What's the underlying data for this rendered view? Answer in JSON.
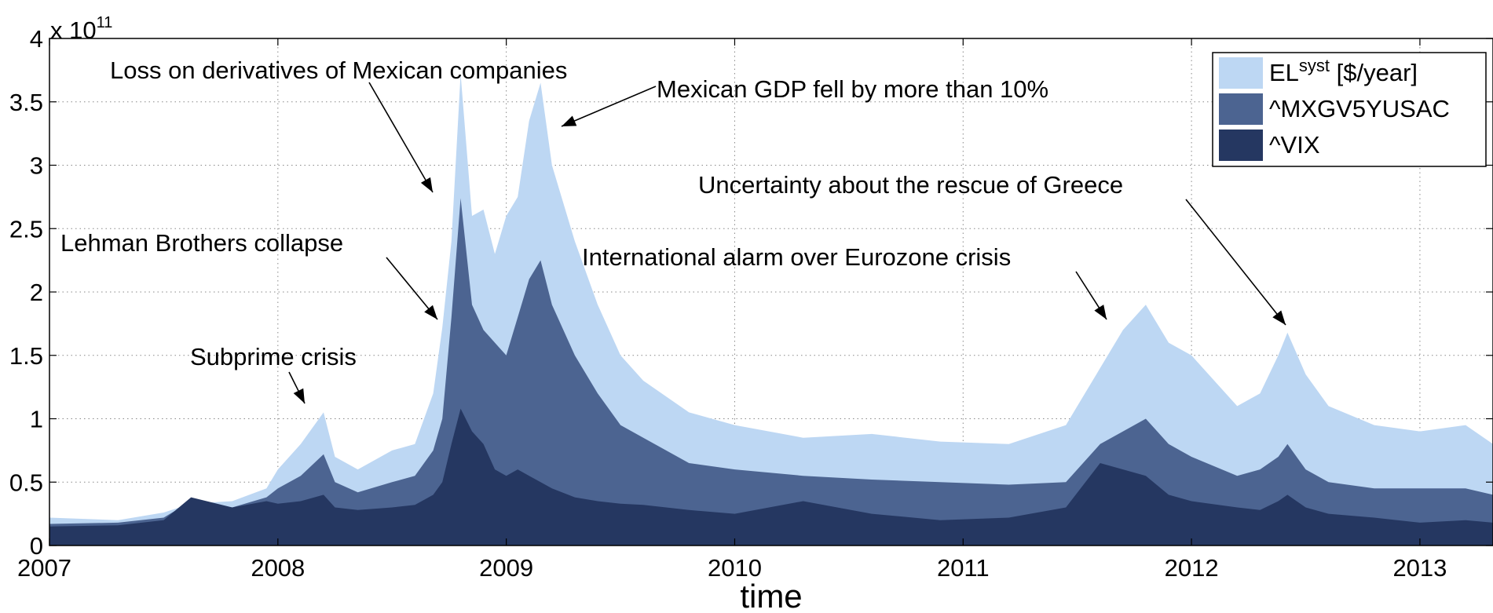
{
  "chart_data": {
    "type": "area",
    "xlabel": "time",
    "ylabel": "",
    "y_exponent_label": "x 10",
    "y_exponent_power": "11",
    "xlim": [
      2007.0,
      2013.32
    ],
    "ylim": [
      0,
      4
    ],
    "x_ticks": [
      2007,
      2008,
      2009,
      2010,
      2011,
      2012,
      2013
    ],
    "x_tick_labels": [
      "2007",
      "2008",
      "2009",
      "2010",
      "2011",
      "2012",
      "2013"
    ],
    "y_ticks": [
      0,
      0.5,
      1,
      1.5,
      2,
      2.5,
      3,
      3.5,
      4
    ],
    "y_tick_labels": [
      "0",
      "0.5",
      "1",
      "1.5",
      "2",
      "2.5",
      "3",
      "3.5",
      "4"
    ],
    "grid": true,
    "legend_position": "top-right",
    "legend": [
      {
        "name_main": "EL",
        "name_sup": "syst",
        "name_suffix": " [$/year]",
        "color": "#bdd7f3"
      },
      {
        "name_main": "^MXGV5YUSAC",
        "name_sup": "",
        "name_suffix": "",
        "color": "#4c6491"
      },
      {
        "name_main": "^VIX",
        "name_sup": "",
        "name_suffix": "",
        "color": "#253761"
      }
    ],
    "series": [
      {
        "name": "EL^syst [$/year]",
        "color": "#bdd7f3",
        "x": [
          2007.0,
          2007.3,
          2007.5,
          2007.62,
          2007.8,
          2007.95,
          2008.0,
          2008.1,
          2008.2,
          2008.25,
          2008.35,
          2008.5,
          2008.6,
          2008.68,
          2008.72,
          2008.76,
          2008.8,
          2008.85,
          2008.9,
          2008.95,
          2009.0,
          2009.05,
          2009.1,
          2009.15,
          2009.2,
          2009.3,
          2009.4,
          2009.5,
          2009.6,
          2009.8,
          2010.0,
          2010.3,
          2010.6,
          2010.9,
          2011.2,
          2011.45,
          2011.6,
          2011.7,
          2011.8,
          2011.9,
          2012.0,
          2012.2,
          2012.3,
          2012.38,
          2012.42,
          2012.5,
          2012.6,
          2012.8,
          2013.0,
          2013.2,
          2013.32
        ],
        "values": [
          0.22,
          0.2,
          0.26,
          0.33,
          0.35,
          0.45,
          0.6,
          0.8,
          1.05,
          0.7,
          0.6,
          0.75,
          0.8,
          1.2,
          1.72,
          2.4,
          3.72,
          2.6,
          2.65,
          2.3,
          2.6,
          2.75,
          3.35,
          3.65,
          3.0,
          2.4,
          1.9,
          1.5,
          1.3,
          1.05,
          0.95,
          0.85,
          0.88,
          0.82,
          0.8,
          0.95,
          1.4,
          1.7,
          1.9,
          1.6,
          1.5,
          1.1,
          1.2,
          1.5,
          1.68,
          1.35,
          1.1,
          0.95,
          0.9,
          0.95,
          0.8
        ]
      },
      {
        "name": "^MXGV5YUSAC",
        "color": "#4c6491",
        "x": [
          2007.0,
          2007.3,
          2007.5,
          2007.62,
          2007.8,
          2007.95,
          2008.0,
          2008.1,
          2008.2,
          2008.25,
          2008.35,
          2008.5,
          2008.6,
          2008.68,
          2008.72,
          2008.76,
          2008.8,
          2008.85,
          2008.9,
          2008.95,
          2009.0,
          2009.05,
          2009.1,
          2009.15,
          2009.2,
          2009.3,
          2009.4,
          2009.5,
          2009.6,
          2009.8,
          2010.0,
          2010.3,
          2010.6,
          2010.9,
          2011.2,
          2011.45,
          2011.6,
          2011.7,
          2011.8,
          2011.9,
          2012.0,
          2012.2,
          2012.3,
          2012.38,
          2012.42,
          2012.5,
          2012.6,
          2012.8,
          2013.0,
          2013.2,
          2013.32
        ],
        "values": [
          0.17,
          0.18,
          0.22,
          0.35,
          0.3,
          0.38,
          0.45,
          0.55,
          0.72,
          0.5,
          0.42,
          0.5,
          0.55,
          0.75,
          1.0,
          1.8,
          2.74,
          1.9,
          1.7,
          1.6,
          1.5,
          1.8,
          2.1,
          2.25,
          1.9,
          1.5,
          1.2,
          0.95,
          0.85,
          0.65,
          0.6,
          0.55,
          0.52,
          0.5,
          0.48,
          0.5,
          0.8,
          0.9,
          1.0,
          0.8,
          0.7,
          0.55,
          0.6,
          0.7,
          0.8,
          0.6,
          0.5,
          0.45,
          0.45,
          0.45,
          0.4
        ]
      },
      {
        "name": "^VIX",
        "color": "#253761",
        "x": [
          2007.0,
          2007.3,
          2007.5,
          2007.62,
          2007.8,
          2007.95,
          2008.0,
          2008.1,
          2008.2,
          2008.25,
          2008.35,
          2008.5,
          2008.6,
          2008.68,
          2008.72,
          2008.76,
          2008.8,
          2008.85,
          2008.9,
          2008.95,
          2009.0,
          2009.05,
          2009.1,
          2009.15,
          2009.2,
          2009.3,
          2009.4,
          2009.5,
          2009.6,
          2009.8,
          2010.0,
          2010.3,
          2010.6,
          2010.9,
          2011.2,
          2011.45,
          2011.6,
          2011.7,
          2011.8,
          2011.9,
          2012.0,
          2012.2,
          2012.3,
          2012.38,
          2012.42,
          2012.5,
          2012.6,
          2012.8,
          2013.0,
          2013.2,
          2013.32
        ],
        "values": [
          0.15,
          0.16,
          0.2,
          0.38,
          0.3,
          0.35,
          0.33,
          0.35,
          0.4,
          0.3,
          0.28,
          0.3,
          0.32,
          0.4,
          0.5,
          0.8,
          1.08,
          0.9,
          0.8,
          0.6,
          0.55,
          0.6,
          0.55,
          0.5,
          0.45,
          0.38,
          0.35,
          0.33,
          0.32,
          0.28,
          0.25,
          0.35,
          0.25,
          0.2,
          0.22,
          0.3,
          0.65,
          0.6,
          0.55,
          0.4,
          0.35,
          0.3,
          0.28,
          0.35,
          0.4,
          0.3,
          0.25,
          0.22,
          0.18,
          0.2,
          0.18
        ]
      }
    ],
    "annotations": [
      {
        "text": "Subprime crisis",
        "x": 2008.05,
        "y": 1.1
      },
      {
        "text": "Lehman Brothers collapse",
        "x": 2008.68,
        "y": 1.8
      },
      {
        "text": "Loss on derivatives of Mexican companies",
        "x": 2008.68,
        "y": 2.8
      },
      {
        "text": "Mexican GDP fell by more than 10%",
        "x": 2009.2,
        "y": 3.35
      },
      {
        "text": "International alarm over Eurozone crisis",
        "x": 2011.58,
        "y": 1.78
      },
      {
        "text": "Uncertainty about the rescue of Greece",
        "x": 2012.4,
        "y": 1.74
      }
    ]
  }
}
